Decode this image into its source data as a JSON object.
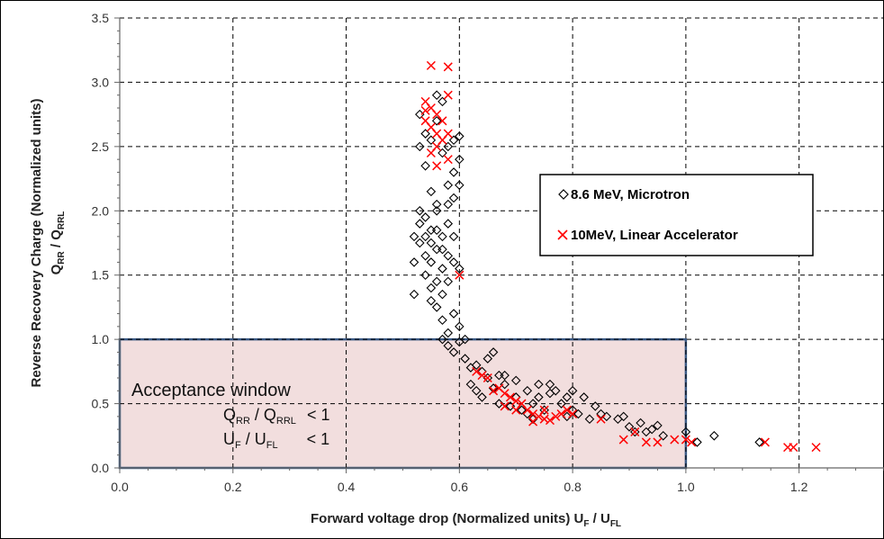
{
  "chart_data": {
    "type": "scatter",
    "xlabel": {
      "main": "Forward voltage drop (Normalized units) U",
      "sub1": "F",
      "mid": " / U",
      "sub2": "FL"
    },
    "ylabel": {
      "line1": "Reverse Recovery Charge  (Normalized units)",
      "q1": "Q",
      "sub1": "RR",
      "mid": " / Q",
      "sub2": "RRL"
    },
    "xlim": [
      0.0,
      1.35
    ],
    "ylim": [
      0.0,
      3.5
    ],
    "x_ticks": [
      "0.0",
      "0.2",
      "0.4",
      "0.6",
      "0.8",
      "1.0",
      "1.2"
    ],
    "y_ticks": [
      "0.0",
      "0.5",
      "1.0",
      "1.5",
      "2.0",
      "2.5",
      "3.0",
      "3.5"
    ],
    "grid": true,
    "legend_position": "right",
    "series": [
      {
        "name": "8.6 MeV, Microtron",
        "marker": "diamond",
        "color": "#000000",
        "points": [
          [
            0.53,
            2.75
          ],
          [
            0.54,
            2.6
          ],
          [
            0.55,
            2.55
          ],
          [
            0.56,
            2.7
          ],
          [
            0.57,
            2.85
          ],
          [
            0.58,
            2.5
          ],
          [
            0.59,
            2.55
          ],
          [
            0.6,
            2.58
          ],
          [
            0.6,
            2.4
          ],
          [
            0.59,
            2.3
          ],
          [
            0.58,
            2.2
          ],
          [
            0.57,
            2.45
          ],
          [
            0.54,
            2.35
          ],
          [
            0.53,
            2.5
          ],
          [
            0.56,
            2.9
          ],
          [
            0.59,
            2.1
          ],
          [
            0.6,
            2.2
          ],
          [
            0.58,
            2.05
          ],
          [
            0.52,
            1.8
          ],
          [
            0.53,
            1.75
          ],
          [
            0.54,
            1.95
          ],
          [
            0.55,
            1.85
          ],
          [
            0.56,
            1.7
          ],
          [
            0.57,
            1.8
          ],
          [
            0.58,
            1.9
          ],
          [
            0.55,
            1.6
          ],
          [
            0.54,
            1.65
          ],
          [
            0.56,
            2.0
          ],
          [
            0.57,
            1.55
          ],
          [
            0.53,
            1.9
          ],
          [
            0.52,
            1.6
          ],
          [
            0.55,
            2.15
          ],
          [
            0.56,
            2.05
          ],
          [
            0.58,
            1.65
          ],
          [
            0.54,
            1.5
          ],
          [
            0.57,
            1.7
          ],
          [
            0.55,
            1.75
          ],
          [
            0.56,
            1.85
          ],
          [
            0.59,
            1.8
          ],
          [
            0.59,
            1.6
          ],
          [
            0.53,
            2.0
          ],
          [
            0.54,
            1.8
          ],
          [
            0.56,
            1.45
          ],
          [
            0.57,
            1.35
          ],
          [
            0.55,
            1.4
          ],
          [
            0.58,
            1.45
          ],
          [
            0.52,
            1.35
          ],
          [
            0.6,
            1.55
          ],
          [
            0.56,
            1.25
          ],
          [
            0.57,
            1.15
          ],
          [
            0.58,
            1.05
          ],
          [
            0.59,
            1.2
          ],
          [
            0.6,
            1.1
          ],
          [
            0.58,
            0.95
          ],
          [
            0.59,
            0.9
          ],
          [
            0.6,
            0.98
          ],
          [
            0.61,
            1.0
          ],
          [
            0.55,
            1.3
          ],
          [
            0.57,
            1.0
          ],
          [
            0.61,
            0.85
          ],
          [
            0.62,
            0.78
          ],
          [
            0.63,
            0.8
          ],
          [
            0.64,
            0.75
          ],
          [
            0.62,
            0.65
          ],
          [
            0.63,
            0.6
          ],
          [
            0.65,
            0.7
          ],
          [
            0.66,
            0.62
          ],
          [
            0.64,
            0.55
          ],
          [
            0.65,
            0.85
          ],
          [
            0.66,
            0.9
          ],
          [
            0.67,
            0.72
          ],
          [
            0.68,
            0.65
          ],
          [
            0.7,
            0.55
          ],
          [
            0.72,
            0.6
          ],
          [
            0.74,
            0.55
          ],
          [
            0.69,
            0.48
          ],
          [
            0.71,
            0.45
          ],
          [
            0.73,
            0.5
          ],
          [
            0.75,
            0.45
          ],
          [
            0.68,
            0.72
          ],
          [
            0.7,
            0.68
          ],
          [
            0.72,
            0.42
          ],
          [
            0.74,
            0.65
          ],
          [
            0.76,
            0.58
          ],
          [
            0.73,
            0.38
          ],
          [
            0.67,
            0.5
          ],
          [
            0.78,
            0.5
          ],
          [
            0.8,
            0.45
          ],
          [
            0.82,
            0.55
          ],
          [
            0.84,
            0.48
          ],
          [
            0.79,
            0.4
          ],
          [
            0.81,
            0.42
          ],
          [
            0.83,
            0.38
          ],
          [
            0.77,
            0.6
          ],
          [
            0.79,
            0.55
          ],
          [
            0.85,
            0.42
          ],
          [
            0.86,
            0.4
          ],
          [
            0.76,
            0.65
          ],
          [
            0.8,
            0.6
          ],
          [
            0.88,
            0.38
          ],
          [
            0.9,
            0.32
          ],
          [
            0.92,
            0.35
          ],
          [
            0.94,
            0.3
          ],
          [
            0.96,
            0.25
          ],
          [
            0.89,
            0.4
          ],
          [
            0.93,
            0.28
          ],
          [
            0.91,
            0.28
          ],
          [
            0.95,
            0.33
          ],
          [
            1.0,
            0.28
          ],
          [
            1.02,
            0.2
          ],
          [
            1.05,
            0.25
          ],
          [
            1.13,
            0.2
          ]
        ]
      },
      {
        "name": "10MeV, Linear Accelerator",
        "marker": "x",
        "color": "#ff0000",
        "points": [
          [
            0.55,
            3.13
          ],
          [
            0.58,
            3.12
          ],
          [
            0.58,
            2.9
          ],
          [
            0.54,
            2.85
          ],
          [
            0.55,
            2.8
          ],
          [
            0.56,
            2.75
          ],
          [
            0.57,
            2.7
          ],
          [
            0.55,
            2.65
          ],
          [
            0.56,
            2.6
          ],
          [
            0.54,
            2.7
          ],
          [
            0.57,
            2.55
          ],
          [
            0.58,
            2.6
          ],
          [
            0.55,
            2.45
          ],
          [
            0.56,
            2.5
          ],
          [
            0.54,
            2.78
          ],
          [
            0.58,
            2.4
          ],
          [
            0.56,
            2.35
          ],
          [
            0.6,
            1.5
          ],
          [
            0.63,
            0.75
          ],
          [
            0.64,
            0.72
          ],
          [
            0.65,
            0.7
          ],
          [
            0.67,
            0.62
          ],
          [
            0.68,
            0.58
          ],
          [
            0.69,
            0.55
          ],
          [
            0.7,
            0.52
          ],
          [
            0.71,
            0.5
          ],
          [
            0.72,
            0.45
          ],
          [
            0.73,
            0.42
          ],
          [
            0.74,
            0.4
          ],
          [
            0.75,
            0.38
          ],
          [
            0.76,
            0.37
          ],
          [
            0.77,
            0.4
          ],
          [
            0.78,
            0.42
          ],
          [
            0.79,
            0.45
          ],
          [
            0.8,
            0.42
          ],
          [
            0.75,
            0.45
          ],
          [
            0.7,
            0.45
          ],
          [
            0.68,
            0.48
          ],
          [
            0.66,
            0.6
          ],
          [
            0.73,
            0.36
          ],
          [
            0.85,
            0.38
          ],
          [
            0.89,
            0.22
          ],
          [
            0.91,
            0.28
          ],
          [
            0.93,
            0.2
          ],
          [
            0.95,
            0.2
          ],
          [
            0.98,
            0.22
          ],
          [
            1.0,
            0.22
          ],
          [
            1.01,
            0.2
          ],
          [
            1.14,
            0.2
          ],
          [
            1.18,
            0.16
          ],
          [
            1.19,
            0.16
          ],
          [
            1.23,
            0.16
          ]
        ]
      }
    ],
    "annotation": {
      "title": "Acceptance window",
      "line1": {
        "a": "Q",
        "a_sub": "RR",
        "mid": " / Q",
        "b_sub": "RRL",
        "cond": "< 1"
      },
      "line2": {
        "a": "U",
        "a_sub": "F",
        "mid": " / U",
        "b_sub": "FL",
        "cond": "< 1"
      },
      "x_range": [
        0.0,
        1.0
      ],
      "y_range": [
        0.0,
        1.0
      ],
      "fill_color": "#f2dede",
      "border_color": "#3b5a85"
    }
  }
}
